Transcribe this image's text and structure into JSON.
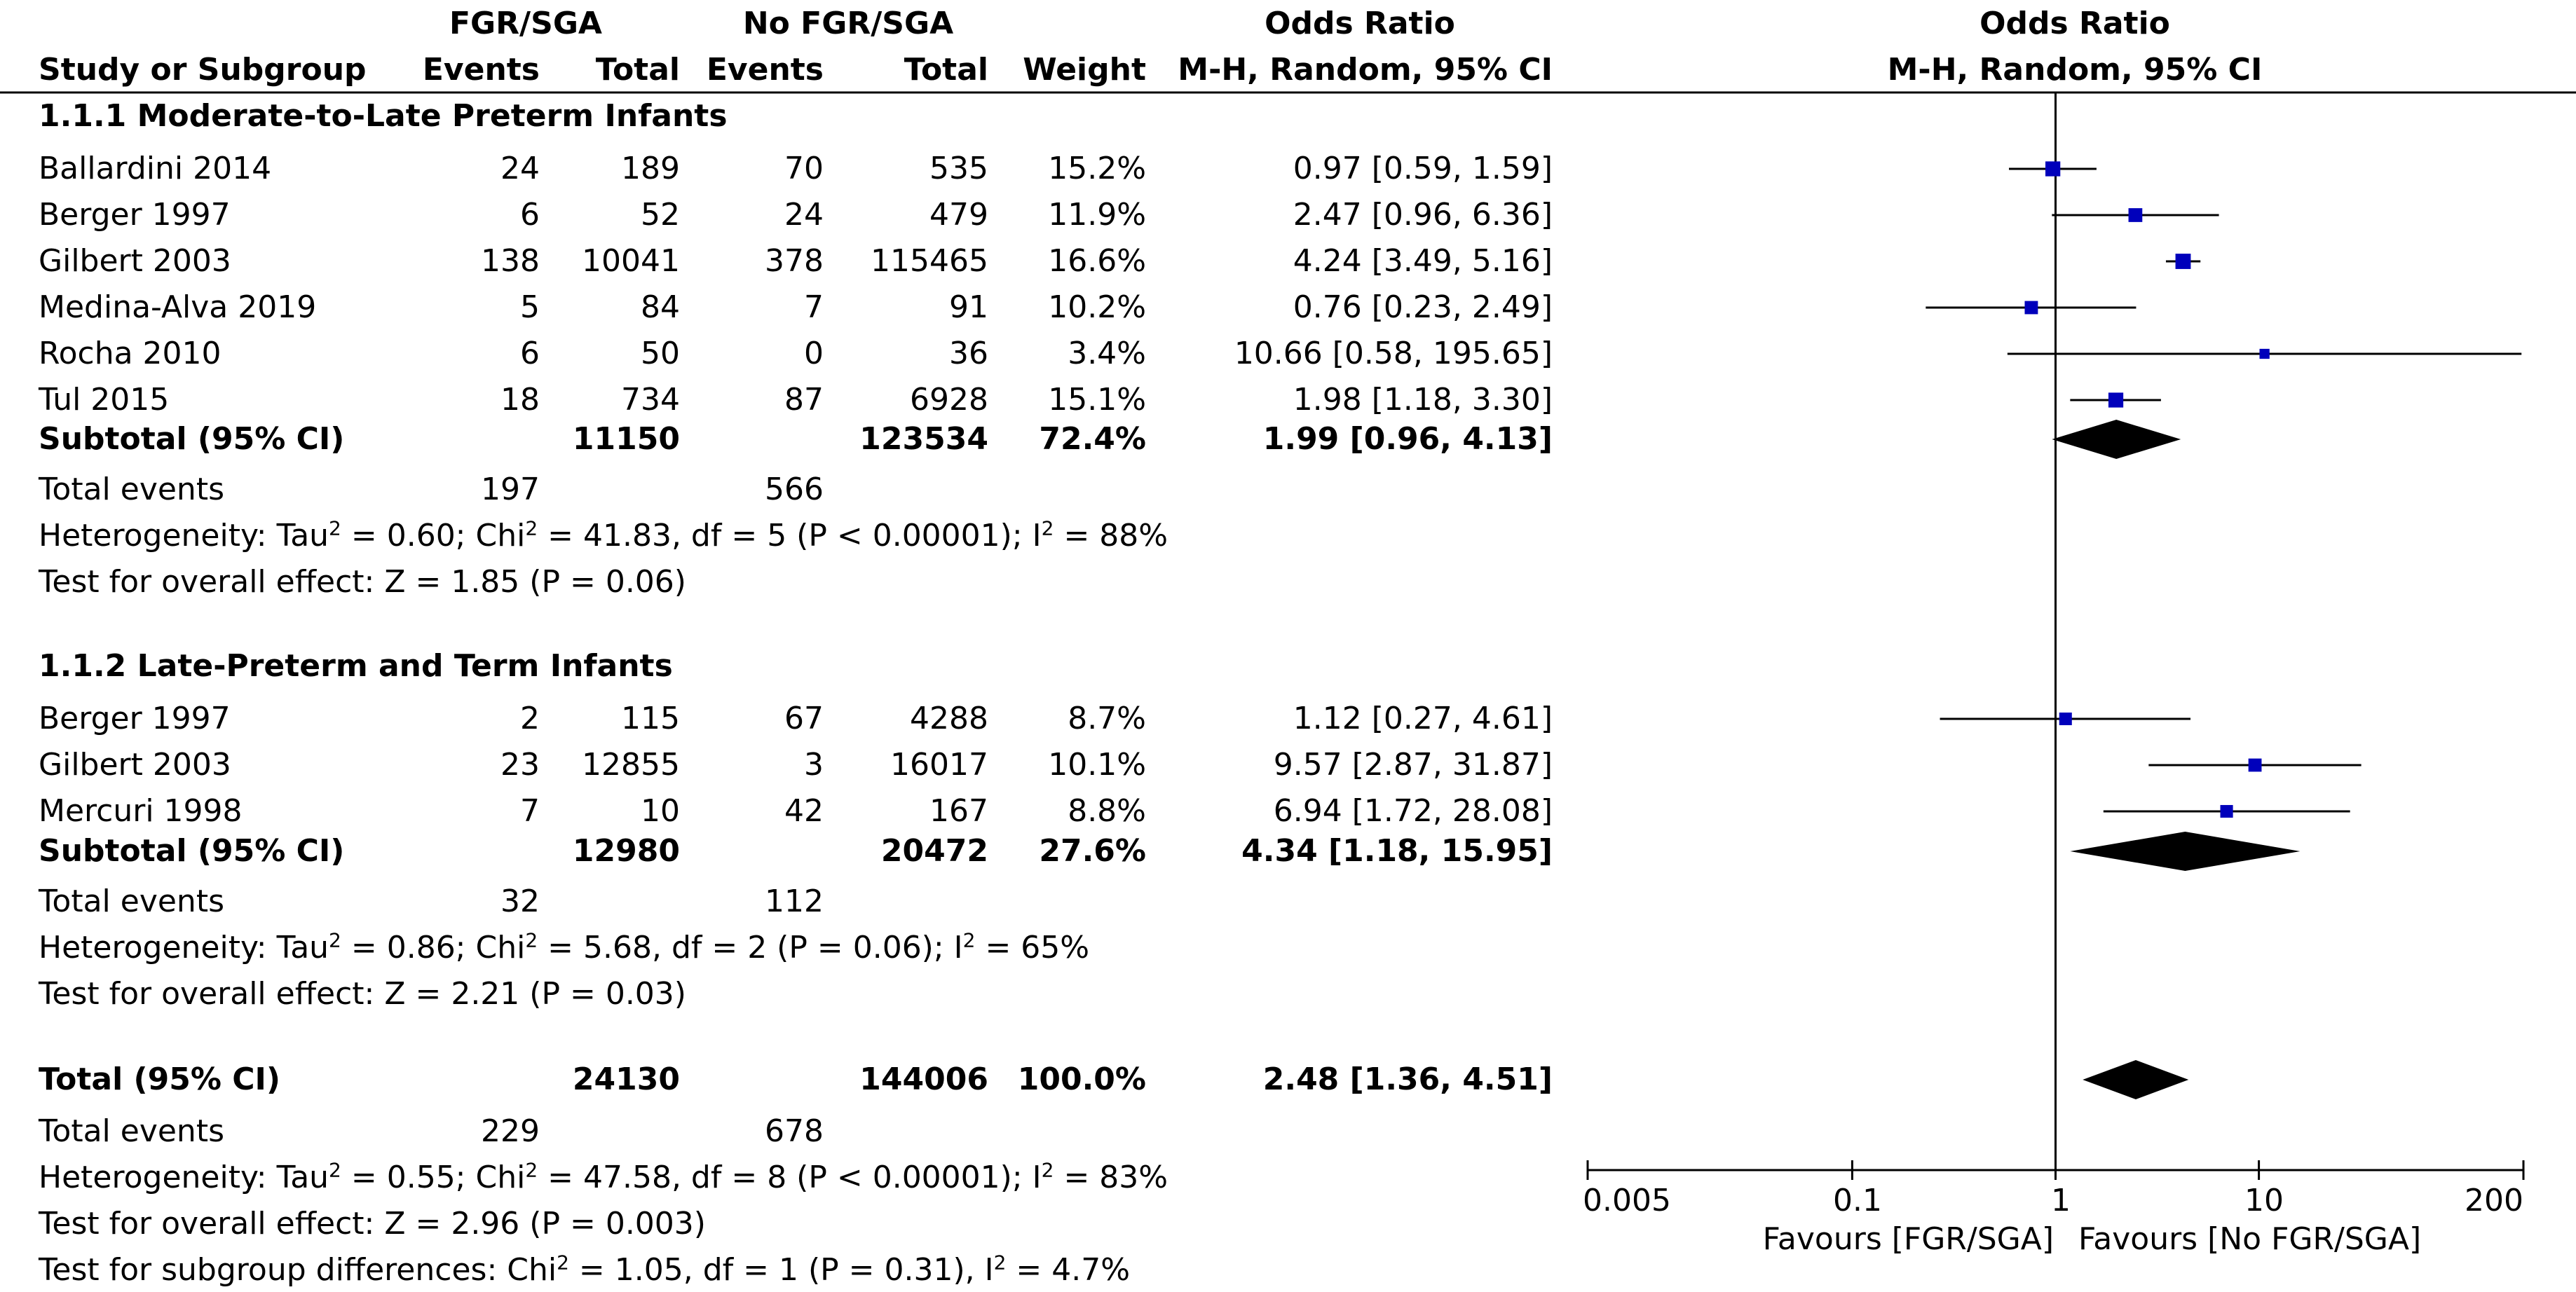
{
  "header": {
    "group1_title": "FGR/SGA",
    "group2_title": "No FGR/SGA",
    "or_title": "Odds Ratio",
    "plot_title": "Odds Ratio",
    "col_study": "Study or Subgroup",
    "col_events1": "Events",
    "col_total1": "Total",
    "col_events2": "Events",
    "col_total2": "Total",
    "col_weight": "Weight",
    "col_method": "M-H, Random, 95% CI",
    "plot_method": "M-H, Random, 95% CI"
  },
  "subgroups": [
    {
      "title": "1.1.1 Moderate-to-Late Preterm Infants",
      "studies": [
        {
          "name": "Ballardini 2014",
          "e1": "24",
          "t1": "189",
          "e2": "70",
          "t2": "535",
          "weight": "15.2%",
          "ci": "0.97 [0.59, 1.59]"
        },
        {
          "name": "Berger 1997",
          "e1": "6",
          "t1": "52",
          "e2": "24",
          "t2": "479",
          "weight": "11.9%",
          "ci": "2.47 [0.96, 6.36]"
        },
        {
          "name": "Gilbert 2003",
          "e1": "138",
          "t1": "10041",
          "e2": "378",
          "t2": "115465",
          "weight": "16.6%",
          "ci": "4.24 [3.49, 5.16]"
        },
        {
          "name": "Medina-Alva 2019",
          "e1": "5",
          "t1": "84",
          "e2": "7",
          "t2": "91",
          "weight": "10.2%",
          "ci": "0.76 [0.23, 2.49]"
        },
        {
          "name": "Rocha 2010",
          "e1": "6",
          "t1": "50",
          "e2": "0",
          "t2": "36",
          "weight": "3.4%",
          "ci": "10.66 [0.58, 195.65]"
        },
        {
          "name": "Tul 2015",
          "e1": "18",
          "t1": "734",
          "e2": "87",
          "t2": "6928",
          "weight": "15.1%",
          "ci": "1.98 [1.18, 3.30]"
        }
      ],
      "subtotal": {
        "label": "Subtotal (95% CI)",
        "t1": "11150",
        "t2": "123534",
        "weight": "72.4%",
        "ci": "1.99 [0.96, 4.13]"
      },
      "events": {
        "label": "Total events",
        "e1": "197",
        "e2": "566"
      },
      "het": {
        "pre": "Heterogeneity: Tau",
        "tau_val": " = 0.60; Chi",
        "chi_val": " = 41.83, df = 5 (P < 0.00001); I",
        "i_val": " = 88%",
        "sup": "2"
      },
      "effect": "Test for overall effect: Z = 1.85 (P = 0.06)"
    },
    {
      "title": "1.1.2 Late-Preterm and Term Infants",
      "studies": [
        {
          "name": "Berger 1997",
          "e1": "2",
          "t1": "115",
          "e2": "67",
          "t2": "4288",
          "weight": "8.7%",
          "ci": "1.12 [0.27, 4.61]"
        },
        {
          "name": "Gilbert 2003",
          "e1": "23",
          "t1": "12855",
          "e2": "3",
          "t2": "16017",
          "weight": "10.1%",
          "ci": "9.57 [2.87, 31.87]"
        },
        {
          "name": "Mercuri 1998",
          "e1": "7",
          "t1": "10",
          "e2": "42",
          "t2": "167",
          "weight": "8.8%",
          "ci": "6.94 [1.72, 28.08]"
        }
      ],
      "subtotal": {
        "label": "Subtotal (95% CI)",
        "t1": "12980",
        "t2": "20472",
        "weight": "27.6%",
        "ci": "4.34 [1.18, 15.95]"
      },
      "events": {
        "label": "Total events",
        "e1": "32",
        "e2": "112"
      },
      "het": {
        "pre": "Heterogeneity: Tau",
        "tau_val": " = 0.86; Chi",
        "chi_val": " = 5.68, df = 2 (P = 0.06); I",
        "i_val": " = 65%",
        "sup": "2"
      },
      "effect": "Test for overall effect: Z = 2.21 (P = 0.03)"
    }
  ],
  "overall": {
    "total": {
      "label": "Total (95% CI)",
      "t1": "24130",
      "t2": "144006",
      "weight": "100.0%",
      "ci": "2.48 [1.36, 4.51]"
    },
    "events": {
      "label": "Total events",
      "e1": "229",
      "e2": "678"
    },
    "het": {
      "pre": "Heterogeneity: Tau",
      "tau_val": " = 0.55; Chi",
      "chi_val": " = 47.58, df = 8 (P < 0.00001); I",
      "i_val": " = 83%",
      "sup": "2"
    },
    "effect": "Test for overall effect: Z = 2.96 (P = 0.003)",
    "subgroup_diff": {
      "pre": "Test for subgroup differences: Chi",
      "chi_val": " = 1.05, df = 1 (P = 0.31), I",
      "i_val": " = 4.7%",
      "sup": "2"
    }
  },
  "axis": {
    "ticks": [
      "0.005",
      "0.1",
      "1",
      "10",
      "200"
    ],
    "favours_left": "Favours [FGR/SGA]",
    "favours_right": "Favours [No FGR/SGA]"
  },
  "colors": {
    "marker": "#0000bb",
    "line": "#000000",
    "diamond": "#000000"
  },
  "chart_data": {
    "type": "forest",
    "title": "Odds Ratio",
    "scale": "log",
    "xlim": [
      0.005,
      200
    ],
    "null_value": 1,
    "series": [
      {
        "subgroup": "1.1.1 Moderate-to-Late Preterm Infants",
        "points": [
          {
            "study": "Ballardini 2014",
            "or": 0.97,
            "lo": 0.59,
            "hi": 1.59,
            "weight": 15.2
          },
          {
            "study": "Berger 1997",
            "or": 2.47,
            "lo": 0.96,
            "hi": 6.36,
            "weight": 11.9
          },
          {
            "study": "Gilbert 2003",
            "or": 4.24,
            "lo": 3.49,
            "hi": 5.16,
            "weight": 16.6
          },
          {
            "study": "Medina-Alva 2019",
            "or": 0.76,
            "lo": 0.23,
            "hi": 2.49,
            "weight": 10.2
          },
          {
            "study": "Rocha 2010",
            "or": 10.66,
            "lo": 0.58,
            "hi": 195.65,
            "weight": 3.4
          },
          {
            "study": "Tul 2015",
            "or": 1.98,
            "lo": 1.18,
            "hi": 3.3,
            "weight": 15.1
          }
        ],
        "subtotal": {
          "or": 1.99,
          "lo": 0.96,
          "hi": 4.13
        }
      },
      {
        "subgroup": "1.1.2 Late-Preterm and Term Infants",
        "points": [
          {
            "study": "Berger 1997",
            "or": 1.12,
            "lo": 0.27,
            "hi": 4.61,
            "weight": 8.7
          },
          {
            "study": "Gilbert 2003",
            "or": 9.57,
            "lo": 2.87,
            "hi": 31.87,
            "weight": 10.1
          },
          {
            "study": "Mercuri 1998",
            "or": 6.94,
            "lo": 1.72,
            "hi": 28.08,
            "weight": 8.8
          }
        ],
        "subtotal": {
          "or": 4.34,
          "lo": 1.18,
          "hi": 15.95
        }
      }
    ],
    "overall": {
      "or": 2.48,
      "lo": 1.36,
      "hi": 4.51
    }
  }
}
